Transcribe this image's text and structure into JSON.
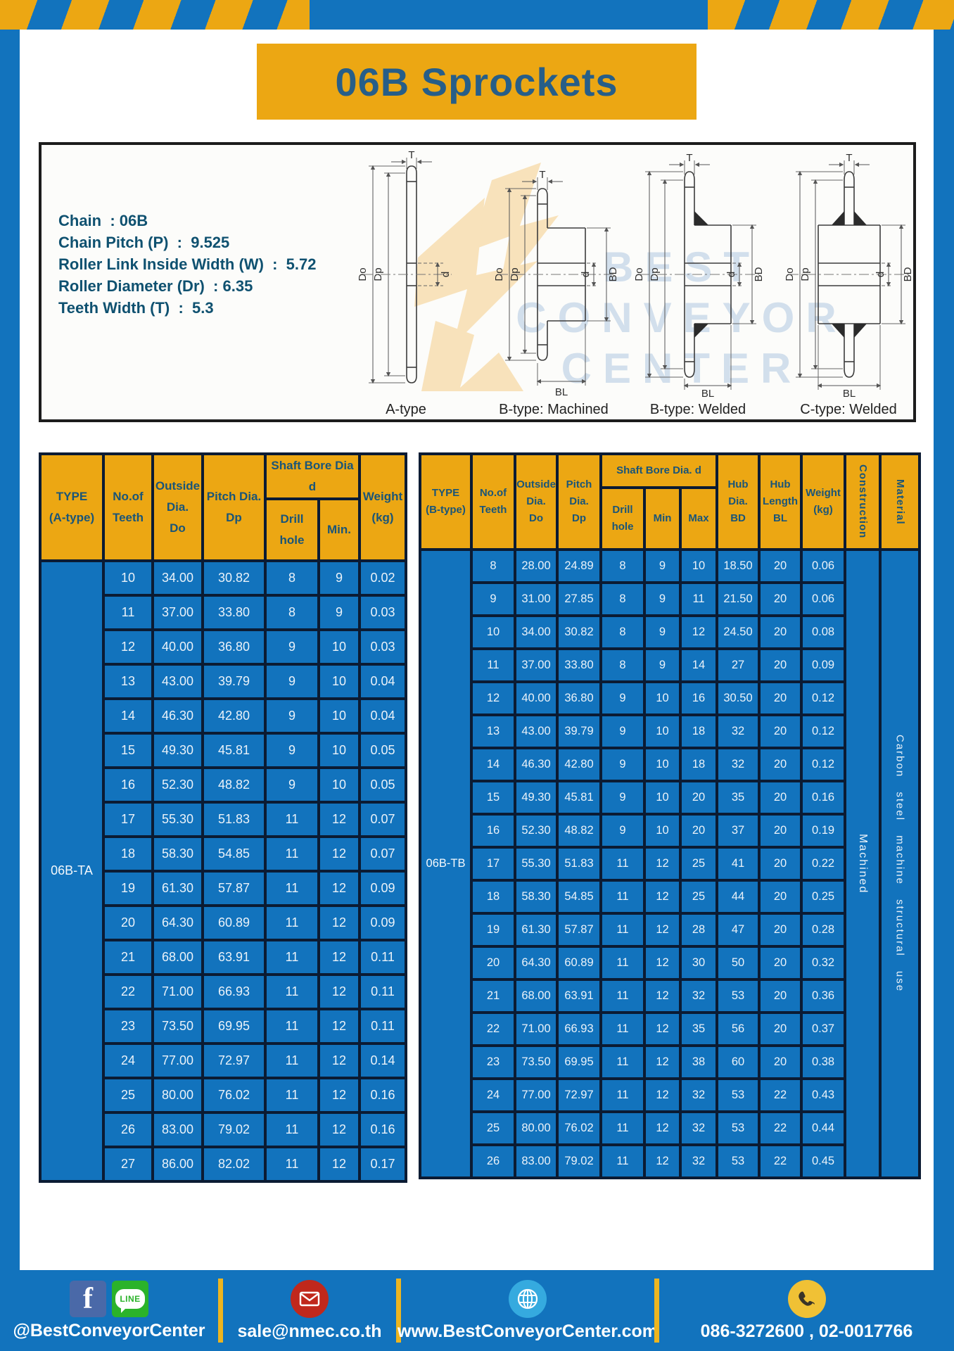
{
  "header": {
    "title": "06B Sprockets"
  },
  "specs": {
    "lines": [
      "Chain  : 06B",
      "Chain Pitch (P)  :  9.525",
      "Roller Link Inside Width (W)  :  5.72",
      "Roller Diameter (Dr)  : 6.35",
      "Teeth Width (T)  :  5.3"
    ]
  },
  "diagrams": {
    "captions": [
      "A-type",
      "B-type: Machined",
      "B-type: Welded",
      "C-type: Welded"
    ],
    "labels": {
      "T": "T",
      "Do": "Do",
      "Dp": "Dp",
      "d": "d",
      "BD": "BD",
      "BL": "BL"
    },
    "watermark": [
      "BEST",
      "CONVEYOR",
      "CENTER"
    ]
  },
  "table_a": {
    "type_label": "06B-TA",
    "col_headers": {
      "type": "TYPE\n(A-type)",
      "teeth": "No.of\nTeeth",
      "outside": "Outside\nDia.\nDo",
      "pitch": "Pitch Dia.\nDp",
      "shaft_bore_group": "Shaft Bore Dia d",
      "drill": "Drill hole",
      "min": "Min.",
      "weight": "Weight\n(kg)"
    },
    "rows": [
      [
        "10",
        "34.00",
        "30.82",
        "8",
        "9",
        "0.02"
      ],
      [
        "11",
        "37.00",
        "33.80",
        "8",
        "9",
        "0.03"
      ],
      [
        "12",
        "40.00",
        "36.80",
        "9",
        "10",
        "0.03"
      ],
      [
        "13",
        "43.00",
        "39.79",
        "9",
        "10",
        "0.04"
      ],
      [
        "14",
        "46.30",
        "42.80",
        "9",
        "10",
        "0.04"
      ],
      [
        "15",
        "49.30",
        "45.81",
        "9",
        "10",
        "0.05"
      ],
      [
        "16",
        "52.30",
        "48.82",
        "9",
        "10",
        "0.05"
      ],
      [
        "17",
        "55.30",
        "51.83",
        "11",
        "12",
        "0.07"
      ],
      [
        "18",
        "58.30",
        "54.85",
        "11",
        "12",
        "0.07"
      ],
      [
        "19",
        "61.30",
        "57.87",
        "11",
        "12",
        "0.09"
      ],
      [
        "20",
        "64.30",
        "60.89",
        "11",
        "12",
        "0.09"
      ],
      [
        "21",
        "68.00",
        "63.91",
        "11",
        "12",
        "0.11"
      ],
      [
        "22",
        "71.00",
        "66.93",
        "11",
        "12",
        "0.11"
      ],
      [
        "23",
        "73.50",
        "69.95",
        "11",
        "12",
        "0.11"
      ],
      [
        "24",
        "77.00",
        "72.97",
        "11",
        "12",
        "0.14"
      ],
      [
        "25",
        "80.00",
        "76.02",
        "11",
        "12",
        "0.16"
      ],
      [
        "26",
        "83.00",
        "79.02",
        "11",
        "12",
        "0.16"
      ],
      [
        "27",
        "86.00",
        "82.02",
        "11",
        "12",
        "0.17"
      ]
    ]
  },
  "table_b": {
    "type_label": "06B-TB",
    "construction_value": "Machined",
    "material_value": "Carbon steel machine structural use",
    "col_headers": {
      "type": "TYPE\n(B-type)",
      "teeth": "No.of\nTeeth",
      "outside": "Outside\nDia.\nDo",
      "pitch": "Pitch\nDia.\nDp",
      "shaft_bore_group": "Shaft Bore Dia. d",
      "drill": "Drill hole",
      "min": "Min",
      "max": "Max",
      "hub_dia": "Hub\nDia.\nBD",
      "hub_len": "Hub\nLength\nBL",
      "weight": "Weight\n(kg)",
      "construction": "Construction",
      "material": "Material"
    },
    "rows": [
      [
        "8",
        "28.00",
        "24.89",
        "8",
        "9",
        "10",
        "18.50",
        "20",
        "0.06"
      ],
      [
        "9",
        "31.00",
        "27.85",
        "8",
        "9",
        "11",
        "21.50",
        "20",
        "0.06"
      ],
      [
        "10",
        "34.00",
        "30.82",
        "8",
        "9",
        "12",
        "24.50",
        "20",
        "0.08"
      ],
      [
        "11",
        "37.00",
        "33.80",
        "8",
        "9",
        "14",
        "27",
        "20",
        "0.09"
      ],
      [
        "12",
        "40.00",
        "36.80",
        "9",
        "10",
        "16",
        "30.50",
        "20",
        "0.12"
      ],
      [
        "13",
        "43.00",
        "39.79",
        "9",
        "10",
        "18",
        "32",
        "20",
        "0.12"
      ],
      [
        "14",
        "46.30",
        "42.80",
        "9",
        "10",
        "18",
        "32",
        "20",
        "0.12"
      ],
      [
        "15",
        "49.30",
        "45.81",
        "9",
        "10",
        "20",
        "35",
        "20",
        "0.16"
      ],
      [
        "16",
        "52.30",
        "48.82",
        "9",
        "10",
        "20",
        "37",
        "20",
        "0.19"
      ],
      [
        "17",
        "55.30",
        "51.83",
        "11",
        "12",
        "25",
        "41",
        "20",
        "0.22"
      ],
      [
        "18",
        "58.30",
        "54.85",
        "11",
        "12",
        "25",
        "44",
        "20",
        "0.25"
      ],
      [
        "19",
        "61.30",
        "57.87",
        "11",
        "12",
        "28",
        "47",
        "20",
        "0.28"
      ],
      [
        "20",
        "64.30",
        "60.89",
        "11",
        "12",
        "30",
        "50",
        "20",
        "0.32"
      ],
      [
        "21",
        "68.00",
        "63.91",
        "11",
        "12",
        "32",
        "53",
        "20",
        "0.36"
      ],
      [
        "22",
        "71.00",
        "66.93",
        "11",
        "12",
        "35",
        "56",
        "20",
        "0.37"
      ],
      [
        "23",
        "73.50",
        "69.95",
        "11",
        "12",
        "38",
        "60",
        "20",
        "0.38"
      ],
      [
        "24",
        "77.00",
        "72.97",
        "11",
        "12",
        "32",
        "53",
        "22",
        "0.43"
      ],
      [
        "25",
        "80.00",
        "76.02",
        "11",
        "12",
        "32",
        "53",
        "22",
        "0.44"
      ],
      [
        "26",
        "83.00",
        "79.02",
        "11",
        "12",
        "32",
        "53",
        "22",
        "0.45"
      ]
    ]
  },
  "footer": {
    "line_text": "LINE",
    "facebook_letter": "f",
    "social": "@BestConveyorCenter",
    "email": "sale@nmec.co.th",
    "website": "www.BestConveyorCenter.com",
    "phone": "086-3272600 , 02-0017766"
  }
}
